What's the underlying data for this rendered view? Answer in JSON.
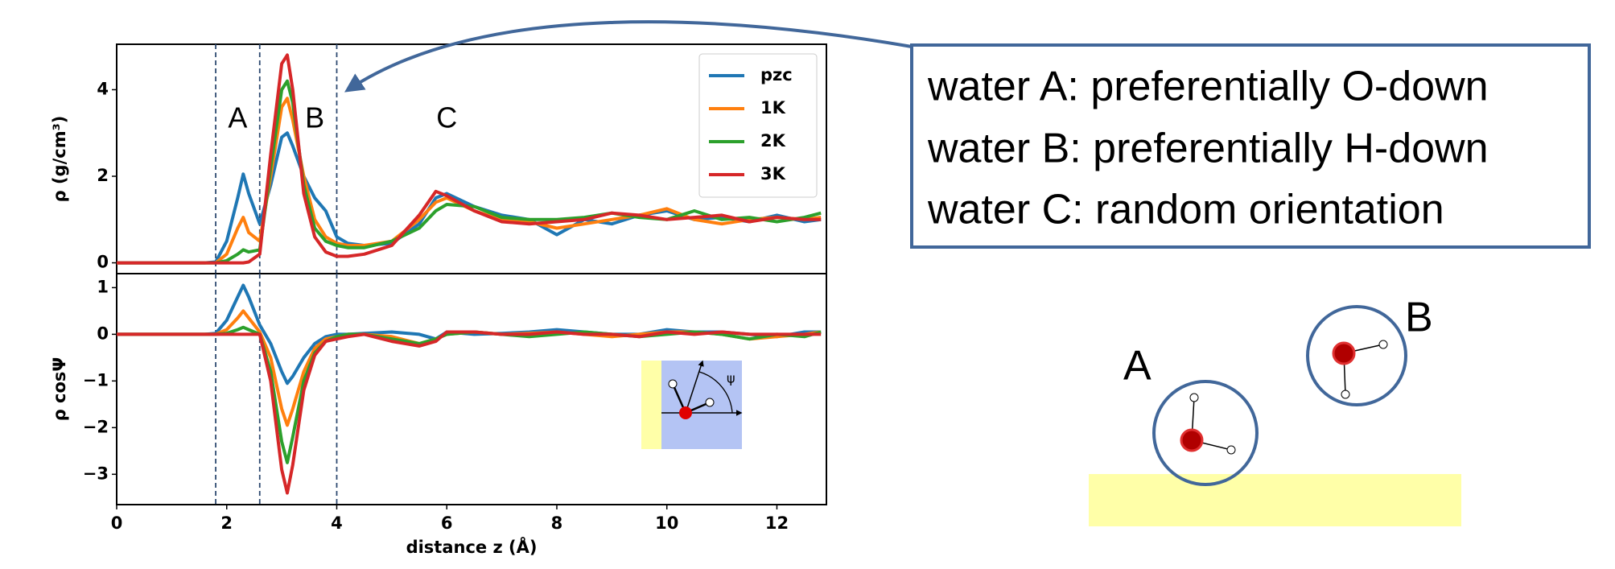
{
  "chart_data": [
    {
      "type": "line",
      "ylabel": "ρ (g/cm³)",
      "xlim": [
        0,
        12.9
      ],
      "ylim": [
        -0.25,
        5.05
      ],
      "yticks": [
        0,
        2,
        4
      ],
      "legend": "upper right",
      "vlines": [
        1.8,
        2.6,
        4.0
      ],
      "annotations": [
        {
          "text": "A",
          "x": 2.2,
          "y": 3.3
        },
        {
          "text": "B",
          "x": 3.6,
          "y": 3.3
        },
        {
          "text": "C",
          "x": 6.0,
          "y": 3.3
        }
      ],
      "x": [
        0,
        1.6,
        1.8,
        2.0,
        2.2,
        2.3,
        2.4,
        2.6,
        2.8,
        3.0,
        3.1,
        3.2,
        3.4,
        3.6,
        3.8,
        4.0,
        4.2,
        4.5,
        5.0,
        5.5,
        5.8,
        6.0,
        6.5,
        7.0,
        7.5,
        8.0,
        8.5,
        9.0,
        9.5,
        10.0,
        10.5,
        11.0,
        11.5,
        12.0,
        12.5,
        12.8
      ],
      "series": [
        {
          "name": "pzc",
          "color": "#1f77b4",
          "values": [
            0,
            0,
            0.02,
            0.5,
            1.5,
            2.05,
            1.6,
            0.9,
            1.8,
            2.9,
            3.0,
            2.7,
            2.0,
            1.5,
            1.2,
            0.6,
            0.45,
            0.4,
            0.45,
            0.9,
            1.5,
            1.6,
            1.3,
            1.1,
            1.0,
            0.65,
            1.0,
            0.9,
            1.1,
            1.2,
            1.0,
            1.05,
            0.95,
            1.1,
            0.95,
            1.0
          ]
        },
        {
          "name": "1K",
          "color": "#ff7f0e",
          "values": [
            0,
            0,
            0,
            0.2,
            0.8,
            1.05,
            0.7,
            0.5,
            2.0,
            3.6,
            3.8,
            3.3,
            2.0,
            1.0,
            0.6,
            0.45,
            0.4,
            0.4,
            0.5,
            1.0,
            1.4,
            1.5,
            1.2,
            1.0,
            0.95,
            0.8,
            0.9,
            1.0,
            1.1,
            1.25,
            1.0,
            0.9,
            1.0,
            1.05,
            1.0,
            1.05
          ]
        },
        {
          "name": "2K",
          "color": "#2ca02c",
          "values": [
            0,
            0,
            0,
            0.05,
            0.2,
            0.3,
            0.25,
            0.3,
            2.2,
            4.0,
            4.2,
            3.7,
            1.8,
            0.8,
            0.5,
            0.4,
            0.35,
            0.35,
            0.5,
            0.8,
            1.2,
            1.35,
            1.3,
            1.05,
            1.0,
            1.0,
            1.05,
            1.15,
            1.05,
            1.0,
            1.2,
            1.0,
            1.05,
            0.95,
            1.05,
            1.15
          ]
        },
        {
          "name": "3K",
          "color": "#d62728",
          "values": [
            0,
            0,
            0,
            0,
            0,
            0,
            0.02,
            0.2,
            2.5,
            4.6,
            4.8,
            4.0,
            1.6,
            0.6,
            0.25,
            0.15,
            0.15,
            0.2,
            0.4,
            1.1,
            1.65,
            1.55,
            1.2,
            0.95,
            0.9,
            0.95,
            1.0,
            1.15,
            1.1,
            1.0,
            1.05,
            1.1,
            0.95,
            1.05,
            1.0,
            1.0
          ]
        }
      ]
    },
    {
      "type": "line",
      "ylabel": "ρ cosΨ",
      "xlabel": "distance z (Å)",
      "xlim": [
        0,
        12.9
      ],
      "ylim": [
        -3.65,
        1.3
      ],
      "yticks": [
        {
          "value": -3,
          "label": "−3"
        },
        {
          "value": -2,
          "label": "−2"
        },
        {
          "value": -1,
          "label": "−1"
        },
        0,
        1
      ],
      "xticks": [
        0,
        2,
        4,
        6,
        8,
        10,
        12
      ],
      "vlines": [
        1.8,
        2.6,
        4.0
      ],
      "x": [
        0,
        1.6,
        1.8,
        2.0,
        2.2,
        2.3,
        2.4,
        2.6,
        2.8,
        3.0,
        3.1,
        3.2,
        3.4,
        3.6,
        3.8,
        4.0,
        4.2,
        4.5,
        5.0,
        5.5,
        5.8,
        6.0,
        6.5,
        7.0,
        7.5,
        8.0,
        8.5,
        9.0,
        9.5,
        10.0,
        10.5,
        11.0,
        11.5,
        12.0,
        12.5,
        12.8
      ],
      "series": [
        {
          "color": "#1f77b4",
          "values": [
            0,
            0,
            0.02,
            0.3,
            0.8,
            1.05,
            0.8,
            0.2,
            -0.2,
            -0.8,
            -1.05,
            -0.9,
            -0.5,
            -0.2,
            -0.05,
            0,
            0,
            0.02,
            0.05,
            0,
            -0.1,
            0.05,
            0,
            0.02,
            0.05,
            0.1,
            0.05,
            0,
            0,
            0.1,
            0.05,
            0.05,
            0,
            -0.05,
            0.05,
            0.05
          ]
        },
        {
          "color": "#ff7f0e",
          "values": [
            0,
            0,
            0,
            0.1,
            0.35,
            0.5,
            0.35,
            0.05,
            -0.5,
            -1.6,
            -1.95,
            -1.6,
            -0.8,
            -0.3,
            -0.1,
            -0.05,
            0,
            0,
            -0.05,
            -0.2,
            -0.1,
            0,
            0.05,
            0,
            0.02,
            0.05,
            0,
            -0.05,
            0,
            0.05,
            0.05,
            0,
            -0.1,
            -0.05,
            0,
            0.05
          ]
        },
        {
          "color": "#2ca02c",
          "values": [
            0,
            0,
            0,
            0.02,
            0.1,
            0.15,
            0.1,
            0,
            -0.8,
            -2.3,
            -2.75,
            -2.2,
            -1.0,
            -0.4,
            -0.15,
            -0.05,
            0,
            0,
            -0.1,
            -0.2,
            -0.1,
            0,
            0.05,
            0,
            -0.05,
            0,
            0.05,
            0,
            -0.05,
            0,
            0.05,
            0,
            -0.1,
            0,
            -0.05,
            0.05
          ]
        },
        {
          "color": "#d62728",
          "values": [
            0,
            0,
            0,
            0,
            0,
            0,
            0,
            0,
            -1.0,
            -2.9,
            -3.4,
            -2.8,
            -1.2,
            -0.45,
            -0.15,
            -0.1,
            -0.05,
            0,
            -0.15,
            -0.25,
            -0.15,
            0.05,
            0.05,
            0,
            0,
            0.05,
            0,
            0,
            -0.05,
            0.05,
            0,
            0.05,
            0,
            0,
            0,
            0
          ]
        }
      ]
    }
  ],
  "inset": {
    "label": "ψ"
  },
  "callout": {
    "lines": [
      "water A: preferentially O-down",
      "water B: preferentially H-down",
      "water C: random orientation"
    ]
  },
  "diagram": {
    "labels": [
      "A",
      "B"
    ]
  }
}
